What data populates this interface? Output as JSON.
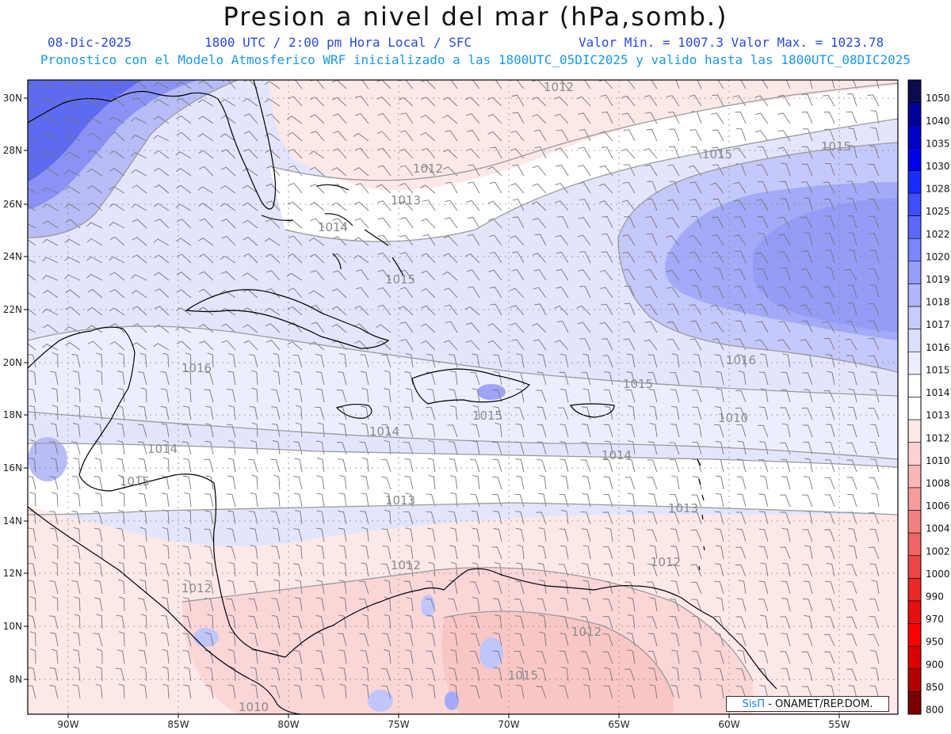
{
  "header": {
    "title": "Presion a nivel del mar (hPa,somb.)",
    "date": "08-Dic-2025",
    "time": "1800 UTC / 2:00 pm Hora Local / SFC",
    "min_max": "Valor Min. = 1007.3  Valor Max. = 1023.78",
    "model_info": "Pronostico con el Modelo Atmosferico WRF inicializado a las 1800UTC_05DIC2025 y valido hasta las  1800UTC_08DIC2025"
  },
  "axes": {
    "latitudes": [
      "30N",
      "28N",
      "26N",
      "24N",
      "22N",
      "20N",
      "18N",
      "16N",
      "14N",
      "12N",
      "10N",
      "8N"
    ],
    "longitudes": [
      "90W",
      "85W",
      "80W",
      "75W",
      "70W",
      "65W",
      "60W",
      "55W"
    ]
  },
  "isobar_labels": [
    "1012",
    "1012",
    "1013",
    "1014",
    "1015",
    "1015",
    "1015",
    "1016",
    "1016",
    "1015",
    "1015",
    "1014",
    "1014",
    "1014",
    "1015",
    "1013",
    "1013",
    "1012",
    "1012",
    "1012",
    "1015",
    "1010",
    "1012",
    "1010"
  ],
  "colorbar": {
    "levels": [
      "1050",
      "1040",
      "1035",
      "1030",
      "1028",
      "1025",
      "1022",
      "1020",
      "1019",
      "1018",
      "1017",
      "1016",
      "1015",
      "1014",
      "1013",
      "1012",
      "1010",
      "1008",
      "1006",
      "1004",
      "1002",
      "1000",
      "990",
      "970",
      "950",
      "900",
      "850",
      "800"
    ],
    "colors": [
      "#0b0b4d",
      "#00009a",
      "#0000c8",
      "#0000ef",
      "#1a2cff",
      "#3e4eff",
      "#5a68ff",
      "#7a86ff",
      "#959efa",
      "#b0b6fb",
      "#c8ccfb",
      "#dcdffc",
      "#eceefd",
      "#ffffff",
      "#ffffff",
      "#fde8e8",
      "#fbd2d2",
      "#f8b8b8",
      "#f59c9c",
      "#f28080",
      "#ef6464",
      "#ec4646",
      "#e92828",
      "#e80f0f",
      "#ff0000",
      "#dc0000",
      "#b40000",
      "#780000"
    ]
  },
  "credit": {
    "logo_text": "SisΠ",
    "org": " - ONAMET/REP.DOM."
  }
}
